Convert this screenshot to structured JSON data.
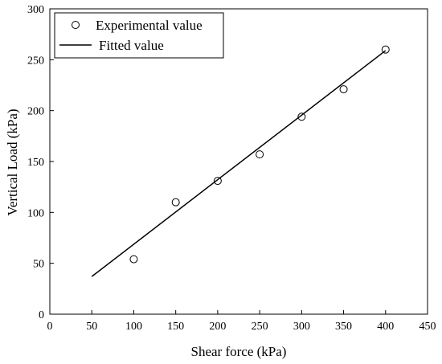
{
  "chart_data": {
    "type": "scatter",
    "xlabel": "Shear force (kPa)",
    "ylabel": "Vertical Load (kPa)",
    "xlim": [
      0,
      450
    ],
    "ylim": [
      0,
      300
    ],
    "x_ticks": [
      0,
      50,
      100,
      150,
      200,
      250,
      300,
      350,
      400,
      450
    ],
    "y_ticks": [
      0,
      50,
      100,
      150,
      200,
      250,
      300
    ],
    "grid": false,
    "legend_position": "top-left",
    "series": [
      {
        "name": "Experimental value",
        "style": "open-circle",
        "color": "#000000",
        "x": [
          100,
          150,
          200,
          250,
          300,
          350,
          400
        ],
        "y": [
          54,
          110,
          131,
          157,
          194,
          221,
          260
        ]
      },
      {
        "name": "Fitted value",
        "style": "line",
        "color": "#000000",
        "x": [
          50,
          400
        ],
        "y": [
          37,
          259
        ]
      }
    ]
  }
}
